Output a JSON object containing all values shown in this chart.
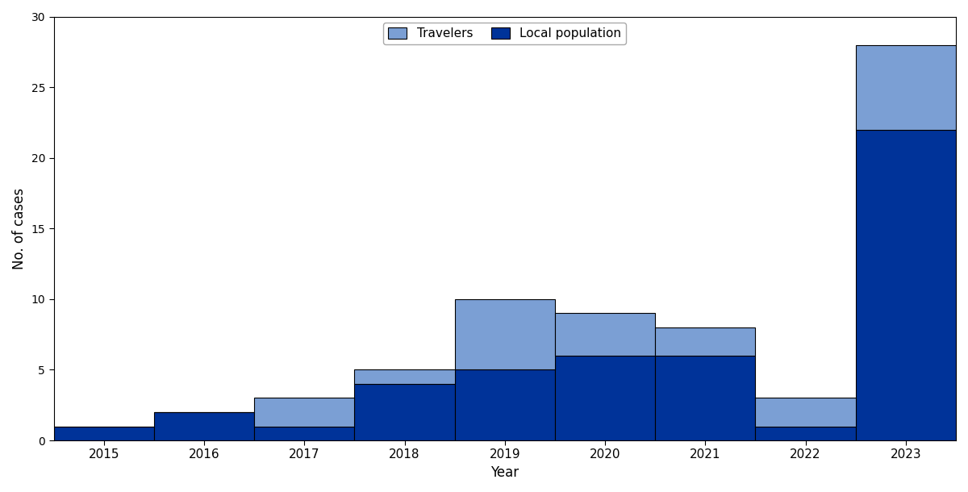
{
  "years": [
    2015,
    2016,
    2017,
    2018,
    2019,
    2020,
    2021,
    2022,
    2023
  ],
  "local_population": [
    1,
    2,
    1,
    4,
    5,
    6,
    6,
    1,
    22
  ],
  "travelers": [
    0,
    0,
    2,
    1,
    5,
    3,
    2,
    2,
    6
  ],
  "color_local": "#003399",
  "color_travelers": "#7b9fd4",
  "xlabel": "Year",
  "ylabel": "No. of cases",
  "ylim": [
    0,
    30
  ],
  "yticks": [
    0,
    5,
    10,
    15,
    20,
    25,
    30
  ],
  "legend_travelers": "Travelers",
  "legend_local": "Local population",
  "bar_width": 1.0,
  "edgecolor": "#000000",
  "xlim_left": 2014.5,
  "xlim_right": 2023.5
}
